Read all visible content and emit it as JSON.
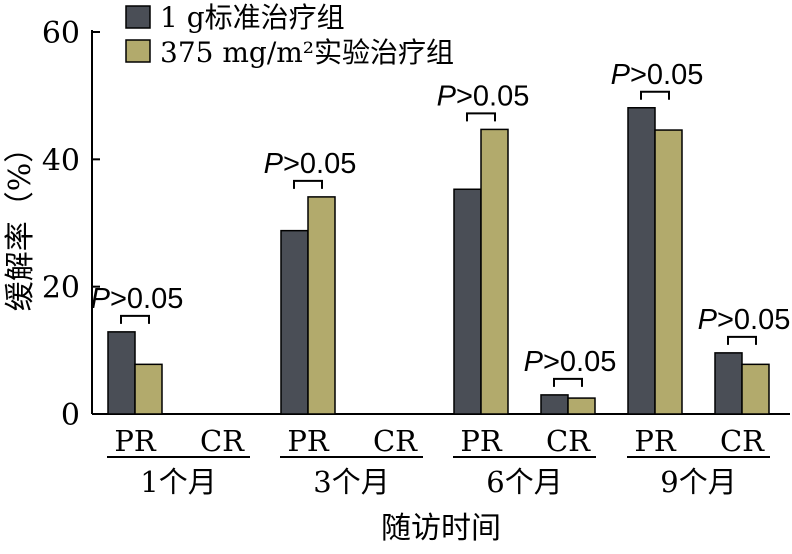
{
  "chart_data": {
    "type": "bar",
    "ylabel": "缓解率（%）",
    "xlabel": "随访时间",
    "ylim": [
      0,
      60
    ],
    "yticks": [
      "0",
      "20",
      "40",
      "60"
    ],
    "groups": [
      "1个月",
      "3个月",
      "6个月",
      "9个月"
    ],
    "subcategories": [
      "PR",
      "CR"
    ],
    "series": [
      {
        "name": "1 g标准治疗组",
        "color": "#4a4e56",
        "values": [
          12.9,
          0,
          28.8,
          0,
          35.3,
          3.0,
          48.1,
          9.6
        ]
      },
      {
        "name": "375 mg/m²实验治疗组",
        "color": "#b2aa6c",
        "values": [
          7.8,
          0,
          34.1,
          0,
          44.7,
          2.5,
          44.6,
          7.8
        ]
      }
    ],
    "annotations": [
      {
        "group": "1个月",
        "sub": "PR",
        "text": "P>0.05"
      },
      {
        "group": "3个月",
        "sub": "PR",
        "text": "P>0.05"
      },
      {
        "group": "6个月",
        "sub": "PR",
        "text": "P>0.05"
      },
      {
        "group": "6个月",
        "sub": "CR",
        "text": "P>0.05"
      },
      {
        "group": "9个月",
        "sub": "PR",
        "text": "P>0.05"
      },
      {
        "group": "9个月",
        "sub": "CR",
        "text": "P>0.05"
      }
    ],
    "legend_position": "top-left"
  }
}
